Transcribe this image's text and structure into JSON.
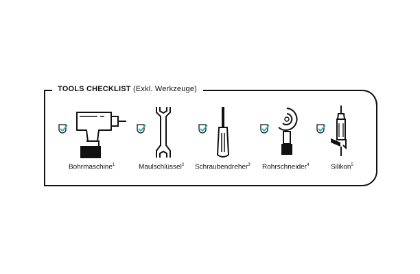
{
  "checklist": {
    "title": "TOOLS CHECKLIST",
    "subtitle": "(Exkl. Werkzeuge)",
    "accent_color": "#2cb5b9",
    "items": [
      {
        "label": "Bohrmaschine",
        "note": "1",
        "icon": "drill-icon"
      },
      {
        "label": "Maulschlüssel",
        "note": "2",
        "icon": "wrench-icon"
      },
      {
        "label": "Schraubendreher",
        "note": "3",
        "icon": "screwdriver-icon"
      },
      {
        "label": "Rohrschneider",
        "note": "4",
        "icon": "pipe-cutter-icon"
      },
      {
        "label": "Silikon",
        "note": "5",
        "icon": "silicone-gun-icon"
      }
    ]
  }
}
